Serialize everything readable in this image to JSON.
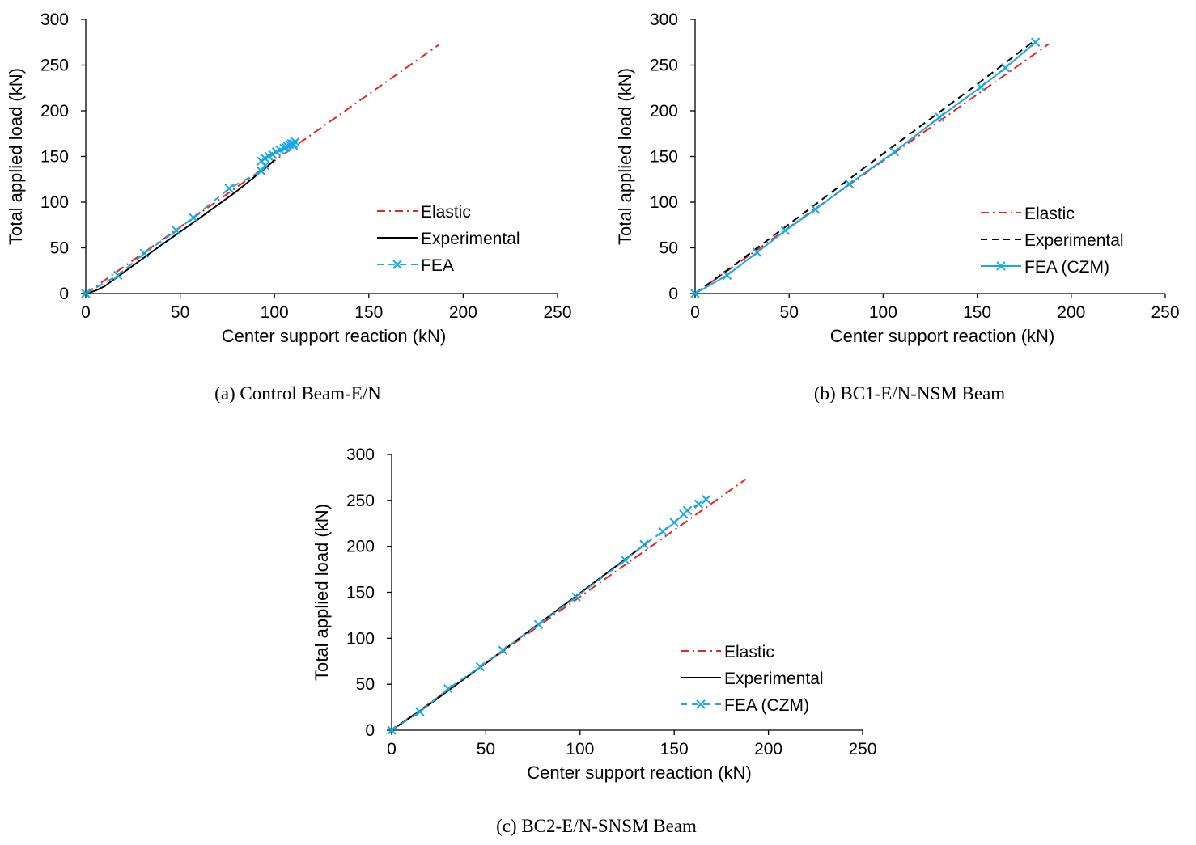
{
  "colors": {
    "elastic": "#e8241e",
    "experimental": "#000000",
    "fea": "#19a9e1",
    "axis": "#000000"
  },
  "chart_data": [
    {
      "type": "line",
      "caption": "(a)  Control Beam-E/N",
      "xlabel": "Center support reaction (kN)",
      "ylabel": "Total applied load (kN)",
      "xlim": [
        0,
        250
      ],
      "ylim": [
        0,
        300
      ],
      "x_ticks": [
        "0",
        "50",
        "100",
        "150",
        "200",
        "250"
      ],
      "y_ticks": [
        "0",
        "50",
        "100",
        "150",
        "200",
        "250",
        "300"
      ],
      "grid": false,
      "legend_position": "lower-right",
      "series": [
        {
          "name": "Elastic",
          "style": "dash-dot",
          "color": "#e8241e",
          "marker": "none",
          "points": [
            [
              0,
              0
            ],
            [
              187,
              272
            ]
          ]
        },
        {
          "name": "Experimental",
          "style": "solid",
          "color": "#000000",
          "marker": "none",
          "points": [
            [
              0,
              0
            ],
            [
              5,
              3
            ],
            [
              10,
              8
            ],
            [
              20,
              23
            ],
            [
              40,
              53
            ],
            [
              60,
              82
            ],
            [
              80,
              112
            ],
            [
              95,
              137
            ],
            [
              100,
              146
            ]
          ]
        },
        {
          "name": "FEA",
          "style": "dashed",
          "color": "#19a9e1",
          "marker": "x",
          "points": [
            [
              0,
              0
            ],
            [
              17,
              20
            ],
            [
              31,
              44
            ],
            [
              48,
              69
            ],
            [
              57,
              83
            ],
            [
              76,
              115
            ],
            [
              93,
              134
            ],
            [
              95,
              140
            ],
            [
              93,
              145
            ],
            [
              95,
              148
            ],
            [
              97,
              150
            ],
            [
              99,
              152
            ],
            [
              101,
              155
            ],
            [
              103,
              157
            ],
            [
              105,
              159
            ],
            [
              107,
              161
            ],
            [
              108,
              163
            ],
            [
              110,
              164
            ],
            [
              111,
              166
            ],
            [
              109,
              164
            ],
            [
              106,
              160
            ],
            [
              110,
              162
            ]
          ]
        }
      ]
    },
    {
      "type": "line",
      "caption": "(b)  BC1-E/N-NSM Beam",
      "xlabel": "Center support reaction (kN)",
      "ylabel": "Total applied load (kN)",
      "xlim": [
        0,
        250
      ],
      "ylim": [
        0,
        300
      ],
      "x_ticks": [
        "0",
        "50",
        "100",
        "150",
        "200",
        "250"
      ],
      "y_ticks": [
        "0",
        "50",
        "100",
        "150",
        "200",
        "250",
        "300"
      ],
      "grid": false,
      "legend_position": "lower-right",
      "series": [
        {
          "name": "Elastic",
          "style": "dash-dot",
          "color": "#e8241e",
          "marker": "none",
          "points": [
            [
              0,
              0
            ],
            [
              188,
              273
            ]
          ]
        },
        {
          "name": "Experimental",
          "style": "dashed",
          "color": "#000000",
          "marker": "none",
          "points": [
            [
              0,
              0
            ],
            [
              20,
              30
            ],
            [
              50,
              76
            ],
            [
              100,
              153
            ],
            [
              150,
              229
            ],
            [
              180,
              276
            ]
          ]
        },
        {
          "name": "FEA (CZM)",
          "style": "solid",
          "color": "#19a9e1",
          "marker": "x",
          "points": [
            [
              0,
              0
            ],
            [
              17,
              20
            ],
            [
              33,
              45
            ],
            [
              48,
              69
            ],
            [
              64,
              92
            ],
            [
              82,
              120
            ],
            [
              106,
              155
            ],
            [
              130,
              193
            ],
            [
              152,
              226
            ],
            [
              165,
              247
            ],
            [
              181,
              275
            ]
          ]
        }
      ]
    },
    {
      "type": "line",
      "caption": "(c)  BC2-E/N-SNSM Beam",
      "xlabel": "Center support reaction (kN)",
      "ylabel": "Total applied load (kN)",
      "xlim": [
        0,
        250
      ],
      "ylim": [
        0,
        300
      ],
      "x_ticks": [
        "0",
        "50",
        "100",
        "150",
        "200",
        "250"
      ],
      "y_ticks": [
        "0",
        "50",
        "100",
        "150",
        "200",
        "250",
        "300"
      ],
      "grid": false,
      "legend_position": "lower-right",
      "series": [
        {
          "name": "Elastic",
          "style": "dash-dot",
          "color": "#e8241e",
          "marker": "none",
          "points": [
            [
              0,
              0
            ],
            [
              188,
              273
            ]
          ]
        },
        {
          "name": "Experimental",
          "style": "solid",
          "color": "#000000",
          "marker": "none",
          "points": [
            [
              0,
              0
            ],
            [
              20,
              28
            ],
            [
              50,
              73
            ],
            [
              100,
              149
            ],
            [
              135,
              203
            ]
          ]
        },
        {
          "name": "FEA (CZM)",
          "style": "dashed",
          "color": "#19a9e1",
          "marker": "x",
          "points": [
            [
              0,
              0
            ],
            [
              15,
              20
            ],
            [
              30,
              45
            ],
            [
              47,
              69
            ],
            [
              59,
              87
            ],
            [
              78,
              115
            ],
            [
              98,
              145
            ],
            [
              124,
              185
            ],
            [
              134,
              202
            ],
            [
              144,
              216
            ],
            [
              150,
              226
            ],
            [
              155,
              235
            ],
            [
              157,
              239
            ],
            [
              163,
              246
            ],
            [
              167,
              251
            ]
          ]
        }
      ]
    }
  ]
}
